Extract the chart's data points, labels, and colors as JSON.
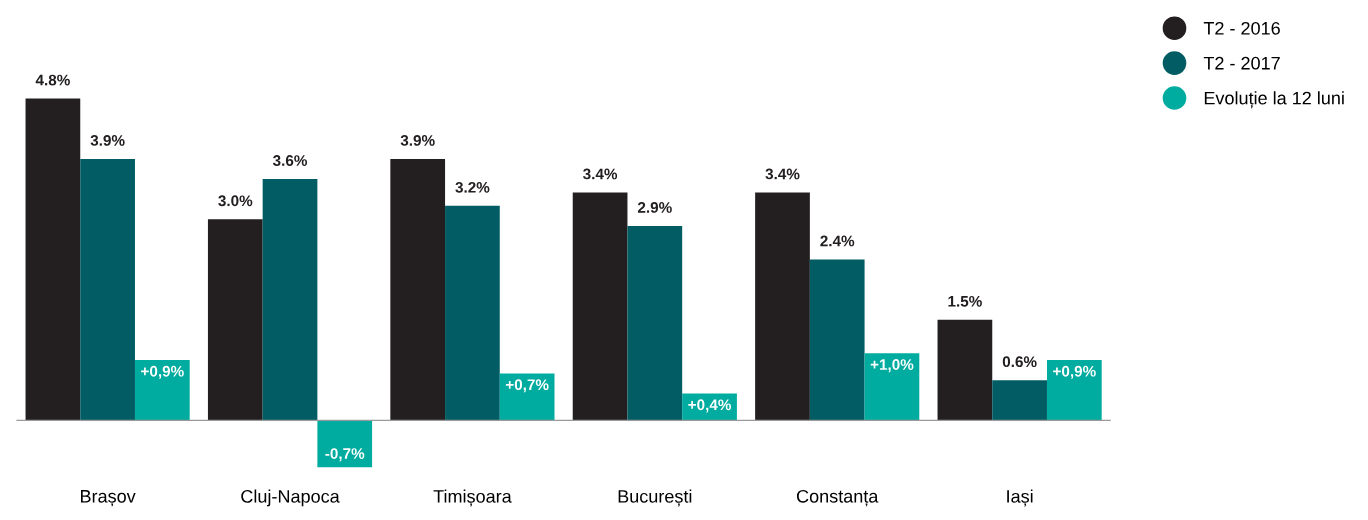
{
  "chart_data": {
    "type": "bar",
    "categories": [
      "Brașov",
      "Cluj-Napoca",
      "Timișoara",
      "București",
      "Constanța",
      "Iași"
    ],
    "series": [
      {
        "name": "T2 - 2016",
        "color": "#231f20",
        "values": [
          4.8,
          3.0,
          3.9,
          3.4,
          3.4,
          1.5
        ],
        "value_labels": [
          "4.8%",
          "3.0%",
          "3.9%",
          "3.4%",
          "3.4%",
          "1.5%"
        ]
      },
      {
        "name": "T2 - 2017",
        "color": "#025c64",
        "values": [
          3.9,
          3.6,
          3.2,
          2.9,
          2.4,
          0.6
        ],
        "value_labels": [
          "3.9%",
          "3.6%",
          "3.2%",
          "2.9%",
          "2.4%",
          "0.6%"
        ]
      },
      {
        "name": "Evoluție la 12 luni",
        "color": "#00ab9f",
        "values": [
          0.9,
          -0.7,
          0.7,
          0.4,
          1.0,
          0.9
        ],
        "value_labels": [
          "+0,9%",
          "-0,7%",
          "+0,7%",
          "+0,4%",
          "+1,0%",
          "+0,9%"
        ]
      }
    ],
    "legend": "top right",
    "grid": false
  }
}
